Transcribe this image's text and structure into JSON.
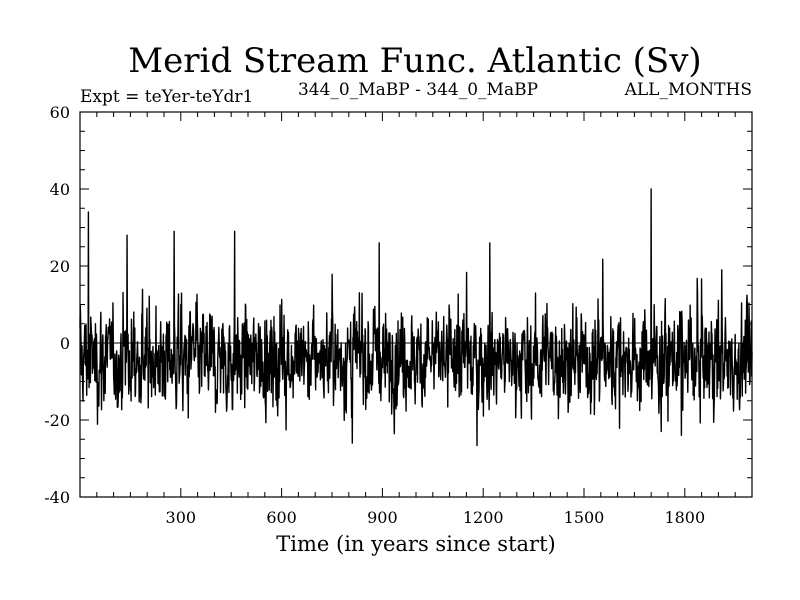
{
  "chart_data": {
    "type": "line",
    "title": "Merid Stream Func. Atlantic (Sv)",
    "subtitle_left": "Expt = teYer-teYdr1",
    "subtitle_center": "344_0_MaBP - 344_0_MaBP",
    "subtitle_right": "ALL_MONTHS",
    "xlabel": "Time (in years since start)",
    "ylabel": "",
    "xlim": [
      0,
      2000
    ],
    "ylim": [
      -40,
      60
    ],
    "x_ticks": [
      300,
      600,
      900,
      1200,
      1500,
      1800
    ],
    "y_ticks": [
      -40,
      -20,
      0,
      20,
      40,
      60
    ],
    "grid": false,
    "series_color": "#000000",
    "baseline": -4,
    "noise_amplitude": 6,
    "n_points": 2000,
    "notable_values": [
      {
        "x": 25,
        "y": 34
      },
      {
        "x": 140,
        "y": 28
      },
      {
        "x": 280,
        "y": 29
      },
      {
        "x": 460,
        "y": 29
      },
      {
        "x": 810,
        "y": -26
      },
      {
        "x": 890,
        "y": 26
      },
      {
        "x": 1220,
        "y": 26
      },
      {
        "x": 1700,
        "y": 40
      },
      {
        "x": 1730,
        "y": -23
      },
      {
        "x": 1790,
        "y": -24
      },
      {
        "x": 1910,
        "y": 19
      }
    ]
  }
}
